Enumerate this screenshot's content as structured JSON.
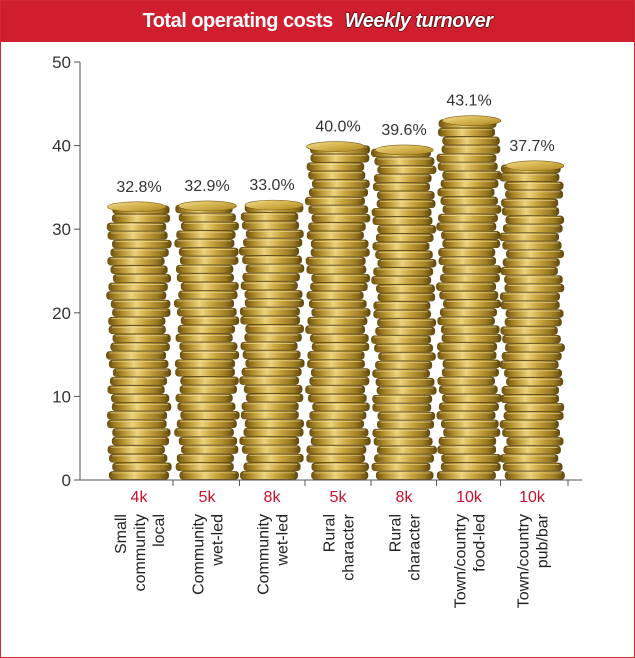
{
  "header": {
    "title": "Total operating costs",
    "subtitle": "Weekly turnover"
  },
  "colors": {
    "header_bg": "#cf1f2e",
    "turnover_label": "#c8102e",
    "coin_light": "#e2c35c",
    "coin_dark": "#8a6a18"
  },
  "chart_data": {
    "type": "bar",
    "title": "Total operating costs",
    "subtitle": "Weekly turnover",
    "ylim": [
      0,
      50
    ],
    "yticks": [
      0,
      10,
      20,
      30,
      40,
      50
    ],
    "grid": false,
    "bar_style": "stacked-coins",
    "categories": [
      {
        "turnover": "4k",
        "label_lines": [
          "Small",
          "community",
          "local"
        ]
      },
      {
        "turnover": "5k",
        "label_lines": [
          "Community",
          "wet-led"
        ]
      },
      {
        "turnover": "8k",
        "label_lines": [
          "Community",
          "wet-led"
        ]
      },
      {
        "turnover": "5k",
        "label_lines": [
          "Rural",
          "character"
        ]
      },
      {
        "turnover": "8k",
        "label_lines": [
          "Rural",
          "character"
        ]
      },
      {
        "turnover": "10k",
        "label_lines": [
          "Town/country",
          "food-led"
        ]
      },
      {
        "turnover": "10k",
        "label_lines": [
          "Town/country",
          "pub/bar"
        ]
      }
    ],
    "values": [
      32.8,
      32.9,
      33.0,
      40.0,
      39.6,
      43.1,
      37.7
    ],
    "value_labels": [
      "32.8%",
      "32.9%",
      "33.0%",
      "40.0%",
      "39.6%",
      "43.1%",
      "37.7%"
    ]
  }
}
